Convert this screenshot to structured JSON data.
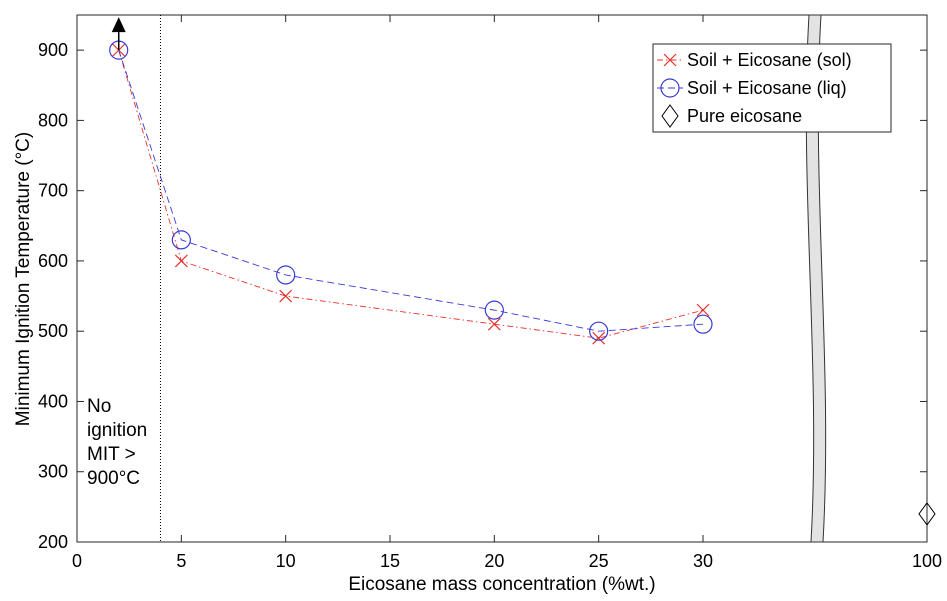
{
  "chart_data": {
    "type": "line",
    "xlabel": "Eicosane mass concentration (%wt.)",
    "ylabel": "Minimum Ignition Temperature (°C)",
    "xlim": [
      0,
      100
    ],
    "ylim": [
      200,
      950
    ],
    "x_scale": "broken",
    "x_ticks": [
      "0",
      "5",
      "10",
      "15",
      "20",
      "25",
      "30",
      "100"
    ],
    "y_ticks": [
      "200",
      "300",
      "400",
      "500",
      "600",
      "700",
      "800",
      "900"
    ],
    "grid": false,
    "legend_position": "top-right",
    "series": [
      {
        "name": "Soil + Eicosane (sol)",
        "color": "#e8312a",
        "marker": "x",
        "line": "dash-dot",
        "x": [
          2,
          5,
          10,
          20,
          25,
          30
        ],
        "y": [
          900,
          600,
          550,
          510,
          490,
          530
        ]
      },
      {
        "name": "Soil + Eicosane (liq)",
        "color": "#3a3ad6",
        "marker": "circle",
        "line": "dashed",
        "x": [
          2,
          5,
          10,
          20,
          25,
          30
        ],
        "y": [
          900,
          630,
          580,
          530,
          500,
          510
        ]
      },
      {
        "name": "Pure eicosane",
        "color": "#000000",
        "marker": "diamond",
        "line": "none",
        "x": [
          100
        ],
        "y": [
          240
        ]
      }
    ],
    "threshold_x": 4,
    "arrow_at": {
      "x": 2,
      "y": 900
    },
    "annotation_lines": [
      "No",
      "ignition",
      "MIT >",
      "900°C"
    ]
  }
}
